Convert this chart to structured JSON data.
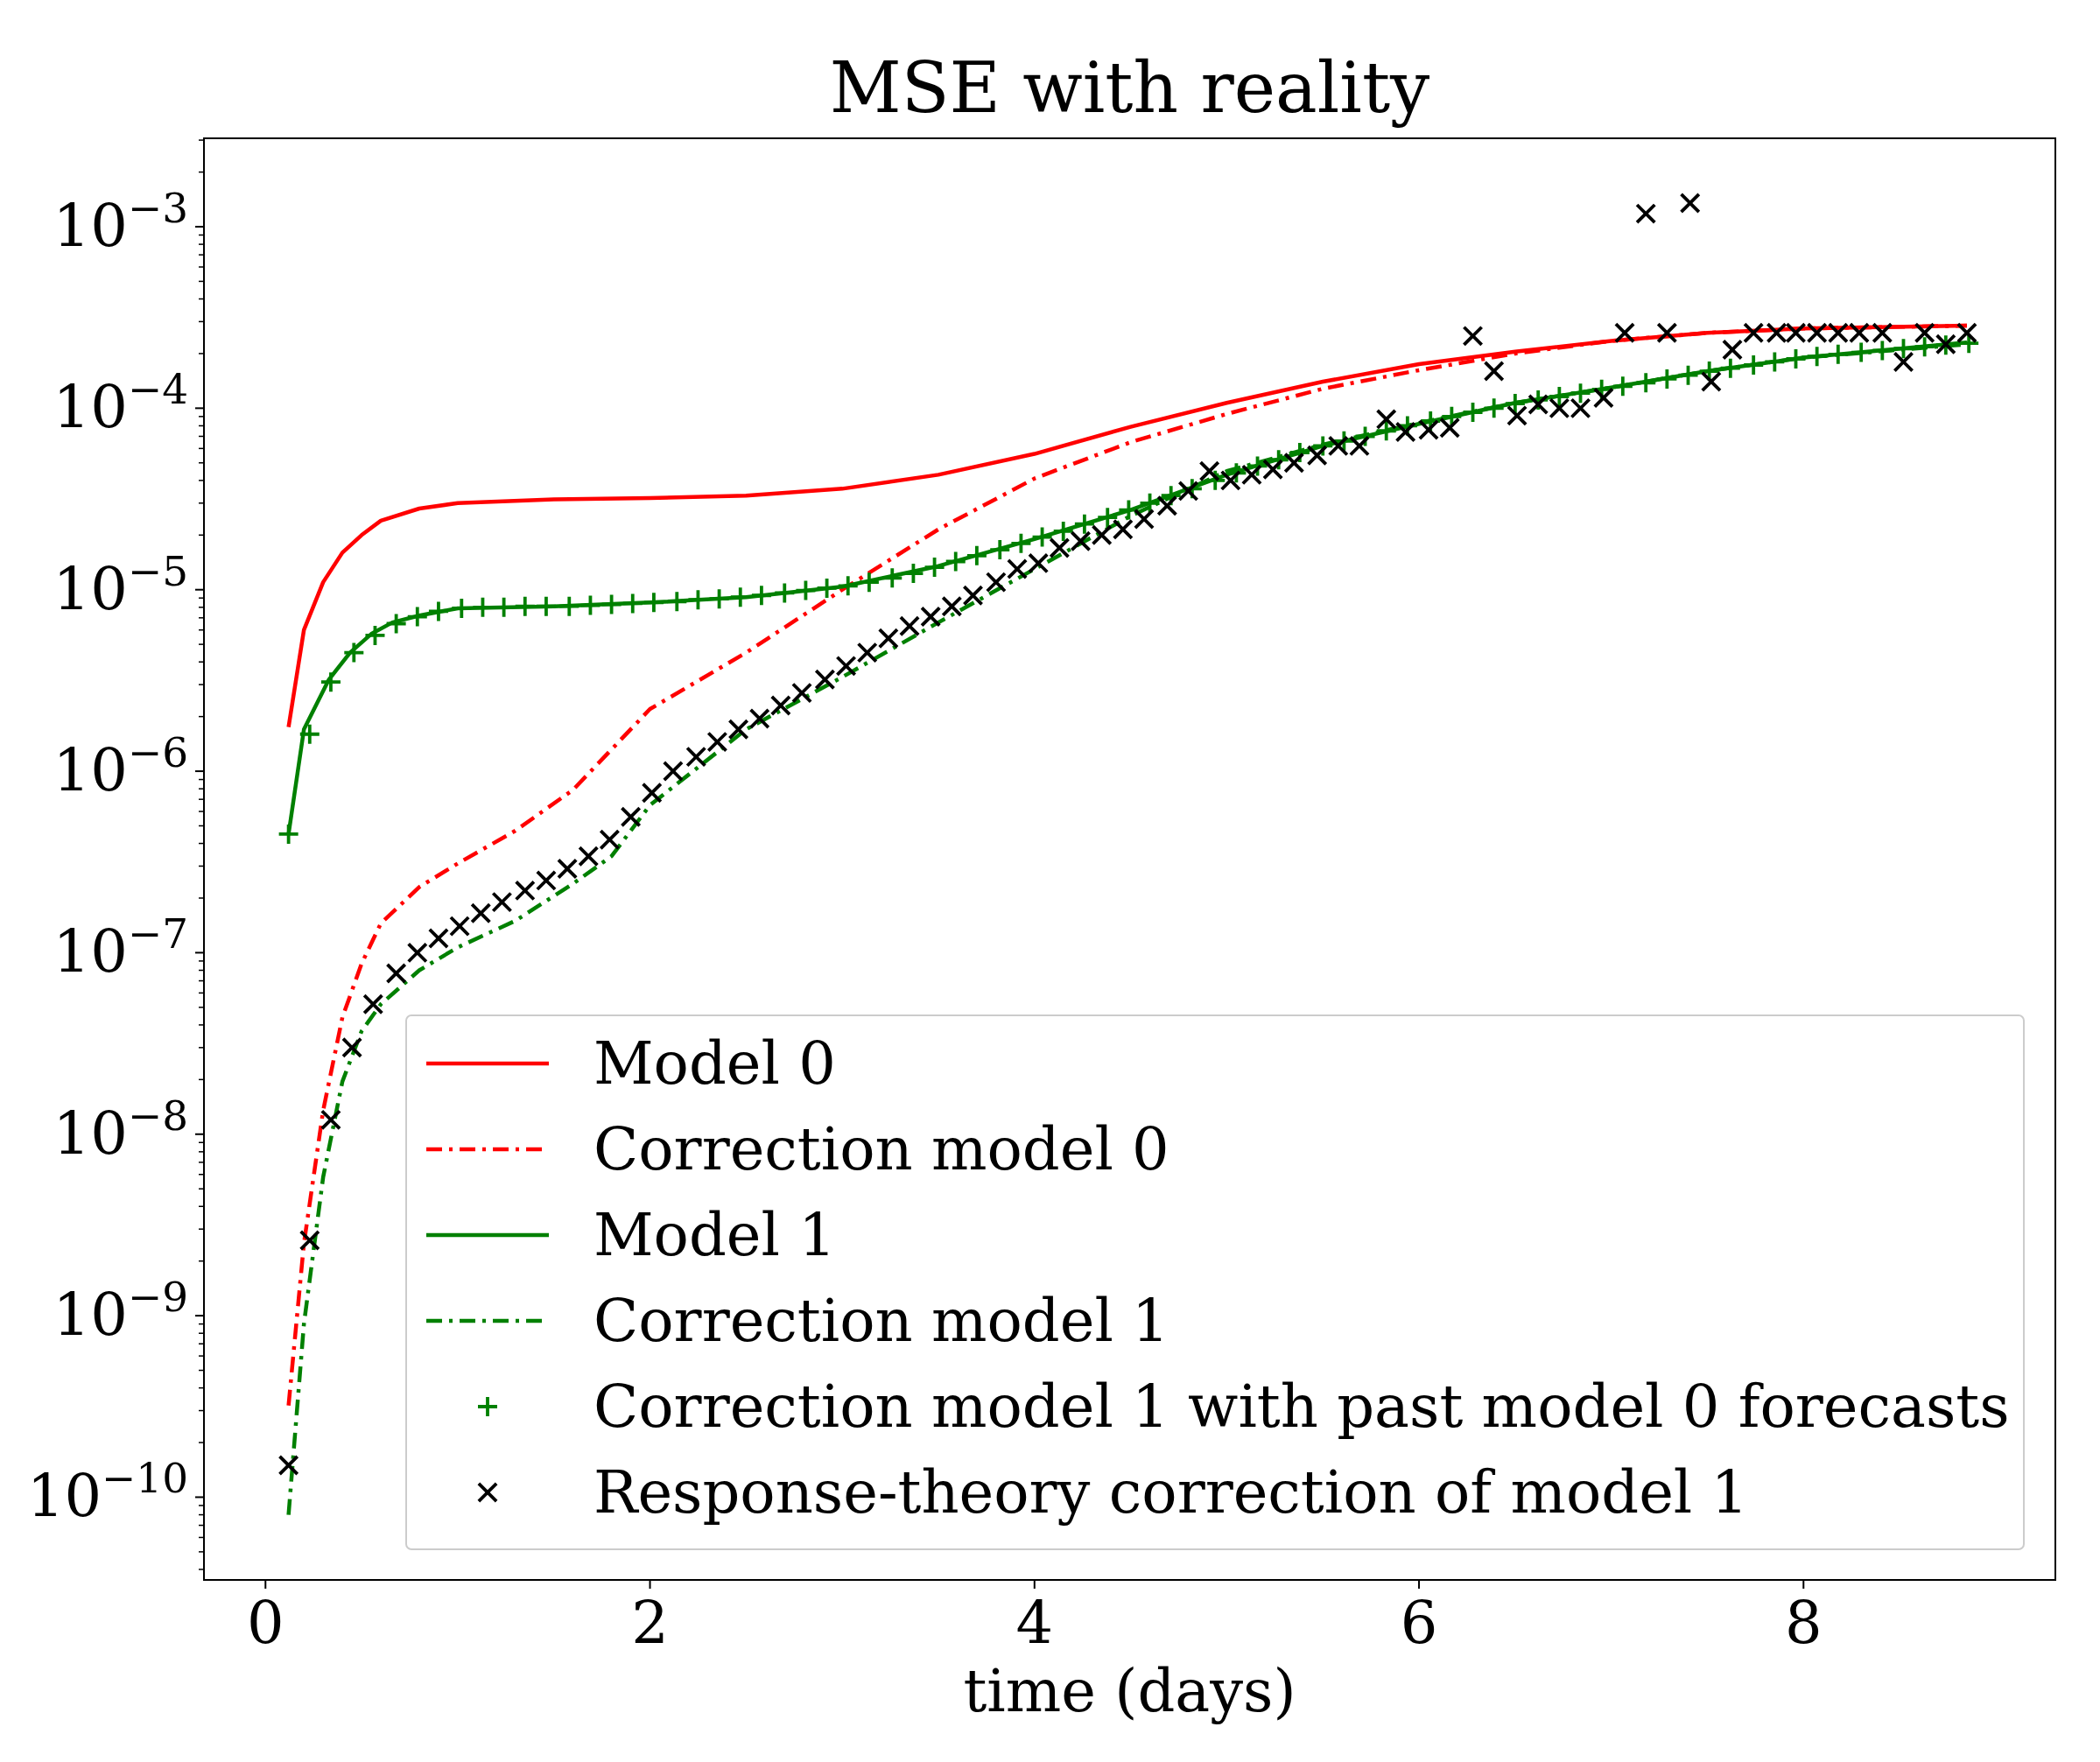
{
  "chart_data": {
    "type": "line",
    "title": "MSE with reality",
    "xlabel": "time (days)",
    "log": "y",
    "grid": false,
    "legend": "bottom right",
    "xlim": [
      -0.32,
      9.31
    ],
    "xticks": [
      0,
      2,
      4,
      6,
      8
    ],
    "ylim": [
      3.5e-11,
      0.00307
    ],
    "yticks": [
      {
        "value": 1e-10,
        "label": "10$^{−10}$"
      },
      {
        "value": 1e-09,
        "label": "10$^{−9}$"
      },
      {
        "value": 1e-08,
        "label": "10$^{−8}$"
      },
      {
        "value": 1e-07,
        "label": "10$^{−7}$"
      },
      {
        "value": 1e-06,
        "label": "10$^{−6}$"
      },
      {
        "value": 1e-05,
        "label": "10$^{−5}$"
      },
      {
        "value": 0.0001,
        "label": "10$^{−4}$"
      },
      {
        "value": 0.001,
        "label": "10$^{−3}$"
      },
      {
        "value": 4e-11,
        "label": null
      },
      {
        "value": 5e-11,
        "label": null
      },
      {
        "value": 6e-11,
        "label": null
      },
      {
        "value": 7e-11,
        "label": null
      },
      {
        "value": 8e-11,
        "label": null
      },
      {
        "value": 9e-11,
        "label": null
      },
      {
        "value": 2e-10,
        "label": null
      },
      {
        "value": 3e-10,
        "label": null
      },
      {
        "value": 4e-10,
        "label": null
      },
      {
        "value": 5e-10,
        "label": null
      },
      {
        "value": 6e-10,
        "label": null
      },
      {
        "value": 7e-10,
        "label": null
      },
      {
        "value": 8e-10,
        "label": null
      },
      {
        "value": 9e-10,
        "label": null
      },
      {
        "value": 2e-09,
        "label": null
      },
      {
        "value": 3e-09,
        "label": null
      },
      {
        "value": 4e-09,
        "label": null
      },
      {
        "value": 5e-09,
        "label": null
      },
      {
        "value": 6e-09,
        "label": null
      },
      {
        "value": 7e-09,
        "label": null
      },
      {
        "value": 8e-09,
        "label": null
      },
      {
        "value": 9e-09,
        "label": null
      },
      {
        "value": 2e-08,
        "label": null
      },
      {
        "value": 3e-08,
        "label": null
      },
      {
        "value": 4e-08,
        "label": null
      },
      {
        "value": 5e-08,
        "label": null
      },
      {
        "value": 6e-08,
        "label": null
      },
      {
        "value": 7e-08,
        "label": null
      },
      {
        "value": 8e-08,
        "label": null
      },
      {
        "value": 9e-08,
        "label": null
      },
      {
        "value": 2e-07,
        "label": null
      },
      {
        "value": 3e-07,
        "label": null
      },
      {
        "value": 4e-07,
        "label": null
      },
      {
        "value": 5e-07,
        "label": null
      },
      {
        "value": 6e-07,
        "label": null
      },
      {
        "value": 7e-07,
        "label": null
      },
      {
        "value": 8e-07,
        "label": null
      },
      {
        "value": 9e-07,
        "label": null
      },
      {
        "value": 2e-06,
        "label": null
      },
      {
        "value": 3e-06,
        "label": null
      },
      {
        "value": 4e-06,
        "label": null
      },
      {
        "value": 5e-06,
        "label": null
      },
      {
        "value": 6e-06,
        "label": null
      },
      {
        "value": 7e-06,
        "label": null
      },
      {
        "value": 8e-06,
        "label": null
      },
      {
        "value": 9e-06,
        "label": null
      },
      {
        "value": 2e-05,
        "label": null
      },
      {
        "value": 3e-05,
        "label": null
      },
      {
        "value": 4e-05,
        "label": null
      },
      {
        "value": 5e-05,
        "label": null
      },
      {
        "value": 6e-05,
        "label": null
      },
      {
        "value": 7e-05,
        "label": null
      },
      {
        "value": 8e-05,
        "label": null
      },
      {
        "value": 9e-05,
        "label": null
      },
      {
        "value": 0.0002,
        "label": null
      },
      {
        "value": 0.0003,
        "label": null
      },
      {
        "value": 0.0004,
        "label": null
      },
      {
        "value": 0.0005,
        "label": null
      },
      {
        "value": 0.0006,
        "label": null
      },
      {
        "value": 0.0007,
        "label": null
      },
      {
        "value": 0.0008,
        "label": null
      },
      {
        "value": 0.0009,
        "label": null
      },
      {
        "value": 0.002,
        "label": null
      },
      {
        "value": 0.003,
        "label": null
      }
    ],
    "series": [
      {
        "name": "Model 0",
        "color": "#ff0000",
        "line_style": "solid",
        "x": [
          0.12,
          0.2,
          0.3,
          0.4,
          0.5,
          0.6,
          0.8,
          1.0,
          1.5,
          2.0,
          2.5,
          3.0,
          3.5,
          4.0,
          4.5,
          5.0,
          5.5,
          6.0,
          6.5,
          7.0,
          7.5,
          8.0,
          8.85
        ],
        "values": [
          1.75e-06,
          6e-06,
          1.1e-05,
          1.6e-05,
          2e-05,
          2.4e-05,
          2.8e-05,
          3e-05,
          3.15e-05,
          3.2e-05,
          3.3e-05,
          3.6e-05,
          4.3e-05,
          5.6e-05,
          7.9e-05,
          0.000107,
          0.00014,
          0.000175,
          0.000205,
          0.000235,
          0.00026,
          0.000275,
          0.000285
        ]
      },
      {
        "name": "Correction model 0",
        "color": "#ff0000",
        "line_style": "dashdot",
        "x": [
          0.12,
          0.2,
          0.3,
          0.4,
          0.5,
          0.6,
          0.8,
          1.0,
          1.3,
          1.6,
          2.0,
          2.5,
          3.0,
          3.5,
          4.0,
          4.5,
          5.0,
          5.5,
          6.0,
          6.5,
          7.0,
          7.5,
          8.0,
          8.85
        ],
        "values": [
          3.2e-10,
          2.5e-09,
          1.35e-08,
          4.4e-08,
          8.7e-08,
          1.45e-07,
          2.3e-07,
          3.1e-07,
          4.7e-07,
          7.9e-07,
          2.2e-06,
          4.5e-06,
          1e-05,
          2.15e-05,
          4.1e-05,
          6.5e-05,
          9.3e-05,
          0.000128,
          0.000162,
          0.0002,
          0.000235,
          0.00026,
          0.000275,
          0.000285
        ]
      },
      {
        "name": "Model 1",
        "color": "#008000",
        "line_style": "solid",
        "x": [
          0.12,
          0.2,
          0.33,
          0.44,
          0.55,
          0.66,
          0.8,
          1.0,
          1.5,
          2.0,
          2.5,
          3.0,
          3.5,
          4.0,
          4.5,
          5.0,
          5.5,
          6.0,
          6.5,
          7.0,
          7.5,
          8.0,
          8.85
        ],
        "values": [
          4.5e-07,
          1.7e-06,
          3.2e-06,
          4.5e-06,
          5.7e-06,
          6.6e-06,
          7.2e-06,
          7.9e-06,
          8.1e-06,
          8.5e-06,
          9.1e-06,
          1.04e-05,
          1.35e-05,
          1.9e-05,
          2.75e-05,
          4.3e-05,
          6.2e-05,
          8.2e-05,
          0.000107,
          0.00013,
          0.00016,
          0.00019,
          0.00023
        ]
      },
      {
        "name": "Correction model 1",
        "color": "#008000",
        "line_style": "dashdot",
        "x": [
          0.12,
          0.2,
          0.3,
          0.4,
          0.5,
          0.6,
          0.8,
          1.0,
          1.3,
          1.6,
          1.8,
          2.0,
          2.5,
          3.0,
          3.5,
          4.0,
          4.5,
          5.0,
          5.5,
          6.0,
          6.5,
          7.0,
          7.5,
          8.0,
          8.85
        ],
        "values": [
          8e-11,
          9e-10,
          5.8e-09,
          1.95e-08,
          3.7e-08,
          5.2e-08,
          8e-08,
          1.07e-07,
          1.5e-07,
          2.4e-07,
          3.4e-07,
          6.5e-07,
          1.7e-06,
          3.3e-06,
          6.6e-06,
          1.3e-05,
          2.55e-05,
          4.5e-05,
          6.3e-05,
          8.3e-05,
          0.000107,
          0.00013,
          0.00016,
          0.00019,
          0.000225
        ]
      },
      {
        "name": "Correction model 1 with past model 0 forecasts",
        "type": "scatter",
        "color": "#008000",
        "marker": "cross",
        "x": [
          0.12,
          0.23,
          0.34,
          0.46,
          0.57,
          0.68,
          0.79,
          0.9,
          1.02,
          1.13,
          1.24,
          1.35,
          1.46,
          1.58,
          1.69,
          1.8,
          1.91,
          2.02,
          2.14,
          2.25,
          2.36,
          2.47,
          2.58,
          2.7,
          2.81,
          2.92,
          3.03,
          3.14,
          3.26,
          3.37,
          3.48,
          3.59,
          3.7,
          3.82,
          3.93,
          4.04,
          4.15,
          4.26,
          4.38,
          4.49,
          4.6,
          4.71,
          4.82,
          4.94,
          5.05,
          5.16,
          5.27,
          5.38,
          5.5,
          5.61,
          5.72,
          5.83,
          5.94,
          6.06,
          6.17,
          6.28,
          6.39,
          6.5,
          6.62,
          6.73,
          6.84,
          6.95,
          7.06,
          7.18,
          7.29,
          7.4,
          7.51,
          7.62,
          7.74,
          7.85,
          7.96,
          8.07,
          8.18,
          8.3,
          8.41,
          8.52,
          8.63,
          8.74,
          8.86
        ],
        "values": [
          4.5e-07,
          1.6e-06,
          3.1e-06,
          4.5e-06,
          5.6e-06,
          6.5e-06,
          7.1e-06,
          7.6e-06,
          7.9e-06,
          8e-06,
          8e-06,
          8.1e-06,
          8.1e-06,
          8.1e-06,
          8.2e-06,
          8.3e-06,
          8.4e-06,
          8.5e-06,
          8.6e-06,
          8.8e-06,
          8.9e-06,
          9.1e-06,
          9.3e-06,
          9.6e-06,
          9.9e-06,
          1.02e-05,
          1.05e-05,
          1.1e-05,
          1.16e-05,
          1.23e-05,
          1.33e-05,
          1.43e-05,
          1.54e-05,
          1.66e-05,
          1.8e-05,
          1.95e-05,
          2.1e-05,
          2.3e-05,
          2.5e-05,
          2.75e-05,
          3e-05,
          3.3e-05,
          3.6e-05,
          4e-05,
          4.4e-05,
          4.8e-05,
          5.2e-05,
          5.7e-05,
          6.2e-05,
          6.6e-05,
          7e-05,
          7.5e-05,
          8e-05,
          8.5e-05,
          9e-05,
          9.5e-05,
          0.0001,
          0.000106,
          0.000111,
          0.000116,
          0.000121,
          0.000127,
          0.000132,
          0.000138,
          0.000145,
          0.000152,
          0.00016,
          0.000166,
          0.000173,
          0.00018,
          0.000187,
          0.000193,
          0.000198,
          0.000203,
          0.000208,
          0.000213,
          0.000218,
          0.000223,
          0.000228
        ]
      },
      {
        "name": "Response-theory correction of model 1",
        "type": "scatter",
        "color": "#000000",
        "marker": "x",
        "x": [
          0.12,
          0.23,
          0.34,
          0.45,
          0.56,
          0.68,
          0.79,
          0.9,
          1.01,
          1.12,
          1.23,
          1.35,
          1.46,
          1.57,
          1.68,
          1.79,
          1.9,
          2.01,
          2.12,
          2.24,
          2.35,
          2.46,
          2.57,
          2.68,
          2.79,
          2.91,
          3.02,
          3.13,
          3.24,
          3.35,
          3.46,
          3.57,
          3.68,
          3.8,
          3.91,
          4.02,
          4.13,
          4.24,
          4.35,
          4.46,
          4.57,
          4.69,
          4.8,
          4.91,
          5.02,
          5.13,
          5.24,
          5.35,
          5.47,
          5.58,
          5.69,
          5.83,
          5.93,
          6.05,
          6.16,
          6.28,
          6.39,
          6.51,
          6.62,
          6.73,
          6.84,
          6.96,
          7.07,
          7.18,
          7.29,
          7.41,
          7.52,
          7.63,
          7.74,
          7.86,
          7.96,
          8.07,
          8.18,
          8.29,
          8.41,
          8.52,
          8.63,
          8.74,
          8.85
        ],
        "values": [
          1.5e-10,
          2.6e-09,
          1.2e-08,
          3e-08,
          5.2e-08,
          7.7e-08,
          1e-07,
          1.2e-07,
          1.4e-07,
          1.65e-07,
          1.9e-07,
          2.2e-07,
          2.5e-07,
          2.9e-07,
          3.4e-07,
          4.2e-07,
          5.6e-07,
          7.6e-07,
          1e-06,
          1.2e-06,
          1.45e-06,
          1.7e-06,
          1.95e-06,
          2.3e-06,
          2.7e-06,
          3.2e-06,
          3.8e-06,
          4.5e-06,
          5.4e-06,
          6.3e-06,
          7.1e-06,
          8.1e-06,
          9.3e-06,
          1.1e-05,
          1.3e-05,
          1.4e-05,
          1.7e-05,
          1.85e-05,
          2e-05,
          2.15e-05,
          2.45e-05,
          2.9e-05,
          3.5e-05,
          4.5e-05,
          4e-05,
          4.3e-05,
          4.6e-05,
          5e-05,
          5.5e-05,
          6.2e-05,
          6.2e-05,
          8.7e-05,
          7.4e-05,
          7.6e-05,
          7.8e-05,
          0.00025,
          0.00016,
          9.1e-05,
          0.000105,
          0.0001,
          0.0001,
          0.000114,
          0.00026,
          0.00118,
          0.00026,
          0.00135,
          0.00014,
          0.00021,
          0.00026,
          0.00026,
          0.00026,
          0.00026,
          0.00026,
          0.00026,
          0.00026,
          0.00018,
          0.00026,
          0.000225,
          0.00026
        ]
      }
    ]
  }
}
